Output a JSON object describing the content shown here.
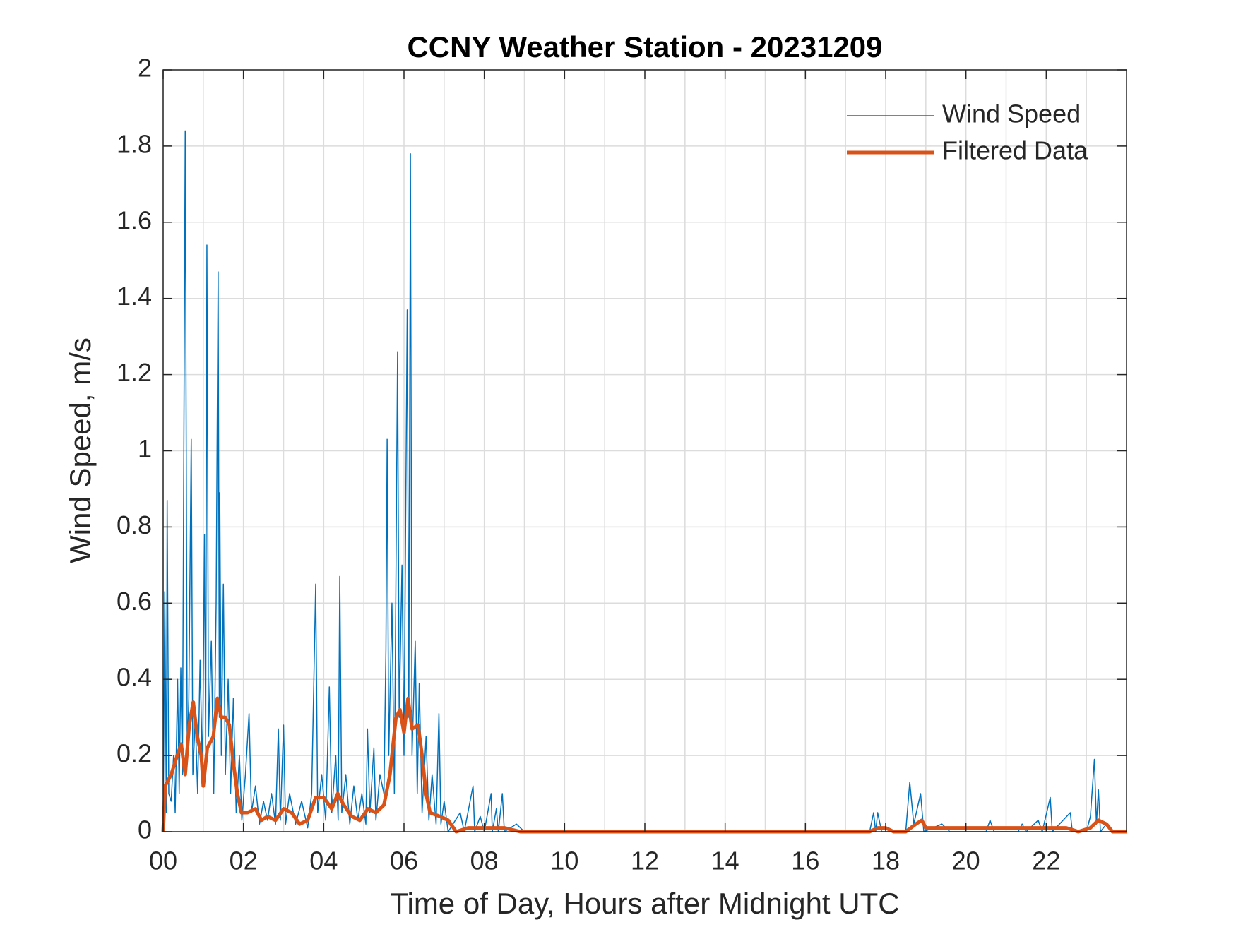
{
  "chart_data": {
    "type": "line",
    "title": "CCNY Weather Station - 20231209",
    "xlabel": "Time of Day, Hours after Midnight UTC",
    "ylabel": "Wind Speed, m/s",
    "xlim": [
      0,
      24
    ],
    "ylim": [
      0,
      2
    ],
    "xticks": [
      {
        "value": 0,
        "label": "00"
      },
      {
        "value": 2,
        "label": "02"
      },
      {
        "value": 4,
        "label": "04"
      },
      {
        "value": 6,
        "label": "06"
      },
      {
        "value": 8,
        "label": "08"
      },
      {
        "value": 10,
        "label": "10"
      },
      {
        "value": 12,
        "label": "12"
      },
      {
        "value": 14,
        "label": "14"
      },
      {
        "value": 16,
        "label": "16"
      },
      {
        "value": 18,
        "label": "18"
      },
      {
        "value": 20,
        "label": "20"
      },
      {
        "value": 22,
        "label": "22"
      }
    ],
    "xminorticks": [
      1,
      3,
      5,
      7,
      9,
      11,
      13,
      15,
      17,
      19,
      21,
      23
    ],
    "yticks": [
      0,
      0.2,
      0.4,
      0.6,
      0.8,
      1,
      1.2,
      1.4,
      1.6,
      1.8,
      2
    ],
    "grid": true,
    "legend": "upper right",
    "series": [
      {
        "name": "Wind Speed",
        "color": "#0072BD",
        "width": 1.5,
        "x": [
          0,
          0.04,
          0.08,
          0.1,
          0.14,
          0.2,
          0.26,
          0.3,
          0.36,
          0.4,
          0.44,
          0.48,
          0.55,
          0.6,
          0.64,
          0.7,
          0.74,
          0.8,
          0.86,
          0.92,
          0.98,
          1.03,
          1.06,
          1.09,
          1.13,
          1.2,
          1.26,
          1.32,
          1.37,
          1.4,
          1.41,
          1.45,
          1.5,
          1.55,
          1.62,
          1.68,
          1.75,
          1.82,
          1.9,
          1.96,
          2.05,
          2.14,
          2.2,
          2.3,
          2.4,
          2.5,
          2.6,
          2.7,
          2.8,
          2.87,
          2.92,
          3.0,
          3.05,
          3.15,
          3.3,
          3.45,
          3.6,
          3.7,
          3.8,
          3.85,
          3.95,
          4.05,
          4.14,
          4.2,
          4.3,
          4.36,
          4.4,
          4.45,
          4.55,
          4.65,
          4.75,
          4.85,
          4.95,
          5.05,
          5.09,
          5.15,
          5.25,
          5.3,
          5.4,
          5.5,
          5.55,
          5.58,
          5.62,
          5.7,
          5.76,
          5.84,
          5.88,
          5.95,
          6.0,
          6.04,
          6.08,
          6.12,
          6.16,
          6.2,
          6.28,
          6.33,
          6.38,
          6.45,
          6.55,
          6.62,
          6.7,
          6.8,
          6.87,
          6.92,
          7.0,
          7.1,
          7.4,
          7.5,
          7.72,
          7.76,
          7.9,
          8.0,
          8.17,
          8.2,
          8.3,
          8.35,
          8.45,
          8.5,
          8.8,
          9.0,
          17.6,
          17.7,
          17.75,
          17.8,
          17.9,
          18.5,
          18.6,
          18.7,
          18.87,
          18.95,
          19.4,
          19.6,
          20.5,
          20.6,
          20.7,
          21.3,
          21.4,
          21.5,
          21.8,
          21.9,
          22.1,
          22.15,
          22.6,
          22.65,
          23.0,
          23.1,
          23.2,
          23.25,
          23.3,
          23.35,
          23.5,
          23.6,
          24
        ],
        "values": [
          0,
          0.63,
          0.05,
          0.87,
          0.1,
          0.08,
          0.2,
          0.05,
          0.4,
          0.1,
          0.43,
          0.15,
          1.84,
          0.2,
          0.35,
          1.03,
          0.15,
          0.3,
          0.1,
          0.45,
          0.15,
          0.78,
          0.2,
          1.54,
          0.25,
          0.5,
          0.1,
          0.6,
          1.47,
          0.3,
          0.89,
          0.2,
          0.65,
          0.15,
          0.4,
          0.1,
          0.35,
          0.05,
          0.2,
          0.03,
          0.15,
          0.31,
          0.05,
          0.12,
          0.02,
          0.08,
          0.03,
          0.1,
          0.02,
          0.27,
          0.03,
          0.28,
          0.02,
          0.1,
          0.02,
          0.08,
          0.01,
          0.1,
          0.65,
          0.05,
          0.15,
          0.03,
          0.38,
          0.05,
          0.2,
          0.03,
          0.67,
          0.05,
          0.15,
          0.02,
          0.12,
          0.03,
          0.1,
          0.02,
          0.27,
          0.05,
          0.22,
          0.03,
          0.15,
          0.1,
          0.48,
          1.03,
          0.2,
          0.6,
          0.1,
          1.26,
          0.3,
          0.7,
          0.2,
          0.8,
          1.37,
          0.3,
          1.78,
          0.2,
          0.5,
          0.1,
          0.39,
          0.05,
          0.25,
          0.03,
          0.15,
          0.02,
          0.31,
          0.02,
          0.08,
          0,
          0.05,
          0,
          0.12,
          0,
          0.04,
          0,
          0.1,
          0,
          0.06,
          0,
          0.1,
          0,
          0.02,
          0,
          0,
          0.05,
          0,
          0.05,
          0,
          0,
          0.13,
          0.02,
          0.1,
          0,
          0.02,
          0,
          0,
          0.03,
          0,
          0,
          0.02,
          0,
          0.03,
          0,
          0.09,
          0,
          0.05,
          0,
          0,
          0.04,
          0.19,
          0.02,
          0.11,
          0,
          0.02,
          0,
          0
        ]
      },
      {
        "name": "Filtered Data",
        "color": "#D95319",
        "width": 5,
        "x": [
          0,
          0.05,
          0.2,
          0.35,
          0.45,
          0.55,
          0.65,
          0.75,
          0.85,
          0.95,
          1.0,
          1.1,
          1.25,
          1.35,
          1.45,
          1.55,
          1.65,
          1.75,
          1.85,
          1.95,
          2.1,
          2.3,
          2.45,
          2.6,
          2.8,
          3.0,
          3.2,
          3.4,
          3.6,
          3.8,
          4.0,
          4.2,
          4.35,
          4.5,
          4.7,
          4.9,
          5.1,
          5.3,
          5.5,
          5.65,
          5.8,
          5.9,
          6.0,
          6.1,
          6.2,
          6.35,
          6.45,
          6.55,
          6.65,
          6.9,
          7.1,
          7.3,
          7.6,
          7.9,
          8.2,
          8.5,
          8.9,
          17.6,
          17.8,
          18.0,
          18.2,
          18.5,
          18.75,
          18.9,
          19.0,
          19.3,
          19.6,
          20.0,
          20.5,
          21.0,
          21.5,
          22.0,
          22.5,
          22.8,
          23.1,
          23.3,
          23.5,
          23.65,
          24
        ],
        "values": [
          0,
          0.12,
          0.15,
          0.2,
          0.23,
          0.15,
          0.28,
          0.34,
          0.25,
          0.2,
          0.12,
          0.22,
          0.25,
          0.35,
          0.3,
          0.3,
          0.28,
          0.18,
          0.1,
          0.05,
          0.05,
          0.06,
          0.03,
          0.04,
          0.03,
          0.06,
          0.05,
          0.02,
          0.03,
          0.09,
          0.09,
          0.06,
          0.1,
          0.07,
          0.04,
          0.03,
          0.06,
          0.05,
          0.07,
          0.15,
          0.3,
          0.32,
          0.26,
          0.35,
          0.27,
          0.28,
          0.2,
          0.1,
          0.05,
          0.04,
          0.03,
          0,
          0.01,
          0.01,
          0.01,
          0.01,
          0,
          0,
          0.01,
          0.01,
          0,
          0,
          0.02,
          0.03,
          0.01,
          0.01,
          0.01,
          0.01,
          0.01,
          0.01,
          0.01,
          0.01,
          0.01,
          0,
          0.01,
          0.03,
          0.02,
          0,
          0
        ]
      }
    ]
  }
}
